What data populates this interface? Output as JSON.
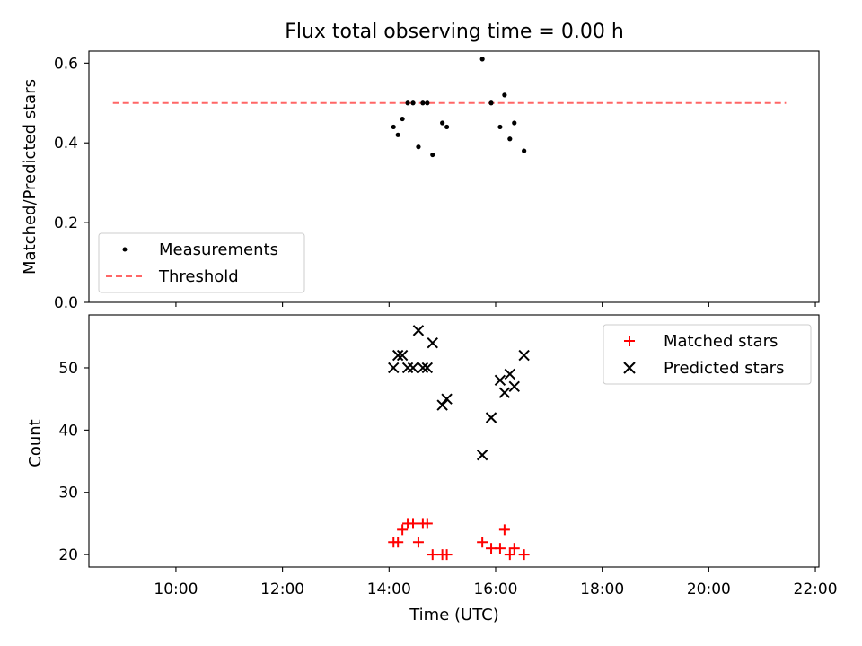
{
  "chart_data": [
    {
      "type": "scatter",
      "title": "Flux total observing time = 0.00 h",
      "xlabel": "",
      "ylabel": "Matched/Predicted stars",
      "ylim": [
        0,
        0.63
      ],
      "yticks": [
        "0.0",
        "0.2",
        "0.4",
        "0.6"
      ],
      "xlim": [
        "08:22",
        "22:04"
      ],
      "grid": false,
      "legend_position": "lower-left",
      "threshold": 0.5,
      "series": [
        {
          "name": "Measurements",
          "marker": "dot",
          "color": "#000000",
          "points": [
            [
              "14:05",
              0.44
            ],
            [
              "14:10",
              0.42
            ],
            [
              "14:15",
              0.46
            ],
            [
              "14:21",
              0.5
            ],
            [
              "14:27",
              0.5
            ],
            [
              "14:33",
              0.39
            ],
            [
              "14:38",
              0.5
            ],
            [
              "14:43",
              0.5
            ],
            [
              "14:49",
              0.37
            ],
            [
              "15:00",
              0.45
            ],
            [
              "15:05",
              0.44
            ],
            [
              "15:45",
              0.61
            ],
            [
              "15:55",
              0.5
            ],
            [
              "16:05",
              0.44
            ],
            [
              "16:10",
              0.52
            ],
            [
              "16:16",
              0.41
            ],
            [
              "16:21",
              0.45
            ],
            [
              "16:32",
              0.38
            ]
          ]
        },
        {
          "name": "Threshold",
          "line_style": "dashed",
          "color": "#ff6666",
          "points": [
            [
              "08:49",
              0.5
            ],
            [
              "21:27",
              0.5
            ]
          ]
        }
      ]
    },
    {
      "type": "scatter",
      "xlabel": "Time (UTC)",
      "ylabel": "Count",
      "ylim": [
        18,
        58.5
      ],
      "yticks": [
        "20",
        "30",
        "40",
        "50"
      ],
      "xticks": [
        "10:00",
        "12:00",
        "14:00",
        "16:00",
        "18:00",
        "20:00",
        "22:00"
      ],
      "xlim": [
        "08:22",
        "22:04"
      ],
      "grid": false,
      "legend_position": "top-right",
      "series": [
        {
          "name": "Matched stars",
          "marker": "plus",
          "color": "#ff0000",
          "points": [
            [
              "14:05",
              22
            ],
            [
              "14:10",
              22
            ],
            [
              "14:15",
              24
            ],
            [
              "14:21",
              25
            ],
            [
              "14:27",
              25
            ],
            [
              "14:33",
              22
            ],
            [
              "14:38",
              25
            ],
            [
              "14:43",
              25
            ],
            [
              "14:49",
              20
            ],
            [
              "15:00",
              20
            ],
            [
              "15:05",
              20
            ],
            [
              "15:45",
              22
            ],
            [
              "15:55",
              21
            ],
            [
              "16:05",
              21
            ],
            [
              "16:10",
              24
            ],
            [
              "16:16",
              20
            ],
            [
              "16:21",
              21
            ],
            [
              "16:32",
              20
            ]
          ]
        },
        {
          "name": "Predicted stars",
          "marker": "x",
          "color": "#000000",
          "points": [
            [
              "14:05",
              50
            ],
            [
              "14:10",
              52
            ],
            [
              "14:15",
              52
            ],
            [
              "14:21",
              50
            ],
            [
              "14:27",
              50
            ],
            [
              "14:33",
              56
            ],
            [
              "14:38",
              50
            ],
            [
              "14:43",
              50
            ],
            [
              "14:49",
              54
            ],
            [
              "15:00",
              44
            ],
            [
              "15:05",
              45
            ],
            [
              "15:45",
              36
            ],
            [
              "15:55",
              42
            ],
            [
              "16:05",
              48
            ],
            [
              "16:10",
              46
            ],
            [
              "16:16",
              49
            ],
            [
              "16:21",
              47
            ],
            [
              "16:32",
              52
            ]
          ]
        }
      ]
    }
  ]
}
